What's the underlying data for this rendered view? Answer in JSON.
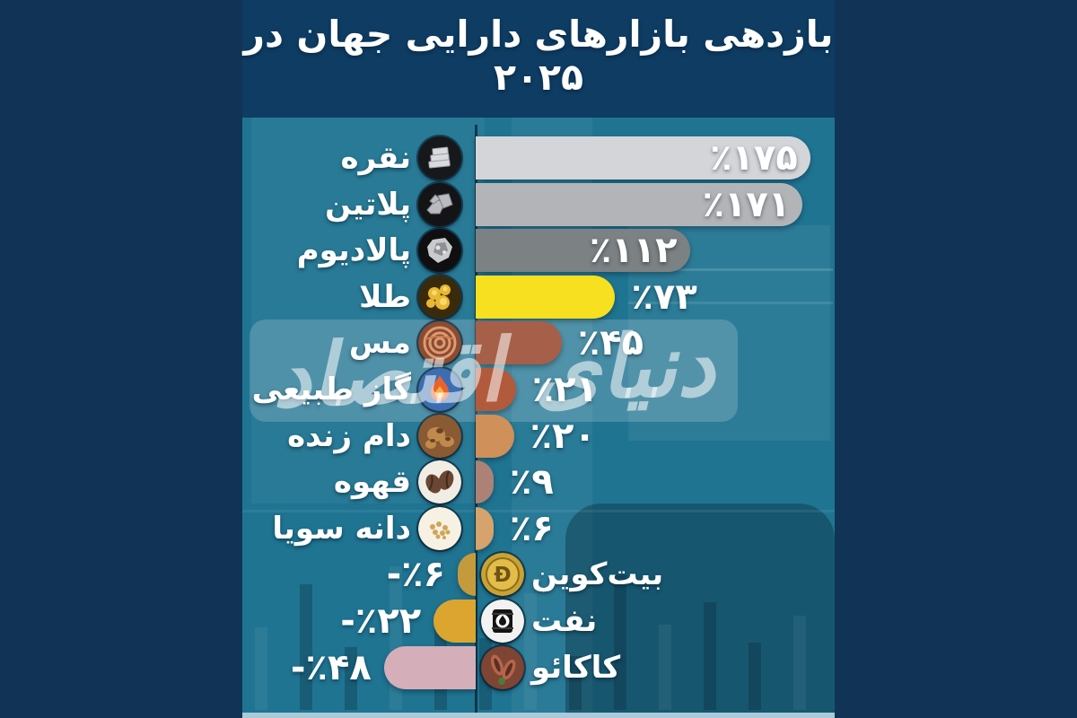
{
  "title": "بازدهی بازارهای دارایی جهان در ۲۰۲۵",
  "watermark": "دنیای اقتصاد",
  "colors": {
    "canvas_side": "#113456",
    "title_band": "#0e3c63",
    "chart_background": "#1f7492",
    "bottom_strip": "#a9cbd9",
    "axis_line": "#07202a",
    "text": "#ffffff"
  },
  "chart_data": {
    "type": "bar",
    "orientation": "horizontal",
    "direction": "rtl",
    "title": "بازدهی بازارهای دارایی جهان در ۲۰۲۵",
    "unit_symbol": "٪",
    "grid": false,
    "baseline": 0,
    "legend": null,
    "items": [
      {
        "id": "silver",
        "label": "نقره",
        "value": 175,
        "value_label": "٪۱۷۵",
        "bar_color": "#d4d5d9",
        "icon": "silver-icon"
      },
      {
        "id": "platinum",
        "label": "پلاتین",
        "value": 171,
        "value_label": "٪۱۷۱",
        "bar_color": "#b3b4b8",
        "icon": "platinum-icon"
      },
      {
        "id": "palladium",
        "label": "پالادیوم",
        "value": 112,
        "value_label": "٪۱۱۲",
        "bar_color": "#7c8183",
        "icon": "palladium-icon"
      },
      {
        "id": "gold",
        "label": "طلا",
        "value": 73,
        "value_label": "٪۷۳",
        "bar_color": "#f6e01f",
        "icon": "gold-icon"
      },
      {
        "id": "copper",
        "label": "مس",
        "value": 45,
        "value_label": "٪۴۵",
        "bar_color": "#a65f48",
        "icon": "copper-icon"
      },
      {
        "id": "natural-gas",
        "label": "گاز طبیعی",
        "value": 21,
        "value_label": "٪۲۱",
        "bar_color": "#b25a3c",
        "icon": "natural-gas-icon"
      },
      {
        "id": "live-cattle",
        "label": "دام زنده",
        "value": 20,
        "value_label": "٪۲۰",
        "bar_color": "#cf9059",
        "icon": "live-cattle-icon"
      },
      {
        "id": "coffee",
        "label": "قهوه",
        "value": 9,
        "value_label": "٪۹",
        "bar_color": "#ac8276",
        "icon": "coffee-icon"
      },
      {
        "id": "soybean",
        "label": "دانه سویا",
        "value": 6,
        "value_label": "٪۶",
        "bar_color": "#d5a36b",
        "icon": "soybean-icon"
      },
      {
        "id": "bitcoin",
        "label": "بیت‌کوین",
        "value": -6,
        "value_label": "-٪۶",
        "bar_color": "#c39b3d",
        "icon": "bitcoin-icon"
      },
      {
        "id": "oil",
        "label": "نفت",
        "value": -22,
        "value_label": "-٪۲۲",
        "bar_color": "#dca52f",
        "icon": "oil-icon"
      },
      {
        "id": "cocoa",
        "label": "کاکائو",
        "value": -48,
        "value_label": "-٪۴۸",
        "bar_color": "#d4aeb9",
        "icon": "cocoa-icon"
      }
    ]
  }
}
